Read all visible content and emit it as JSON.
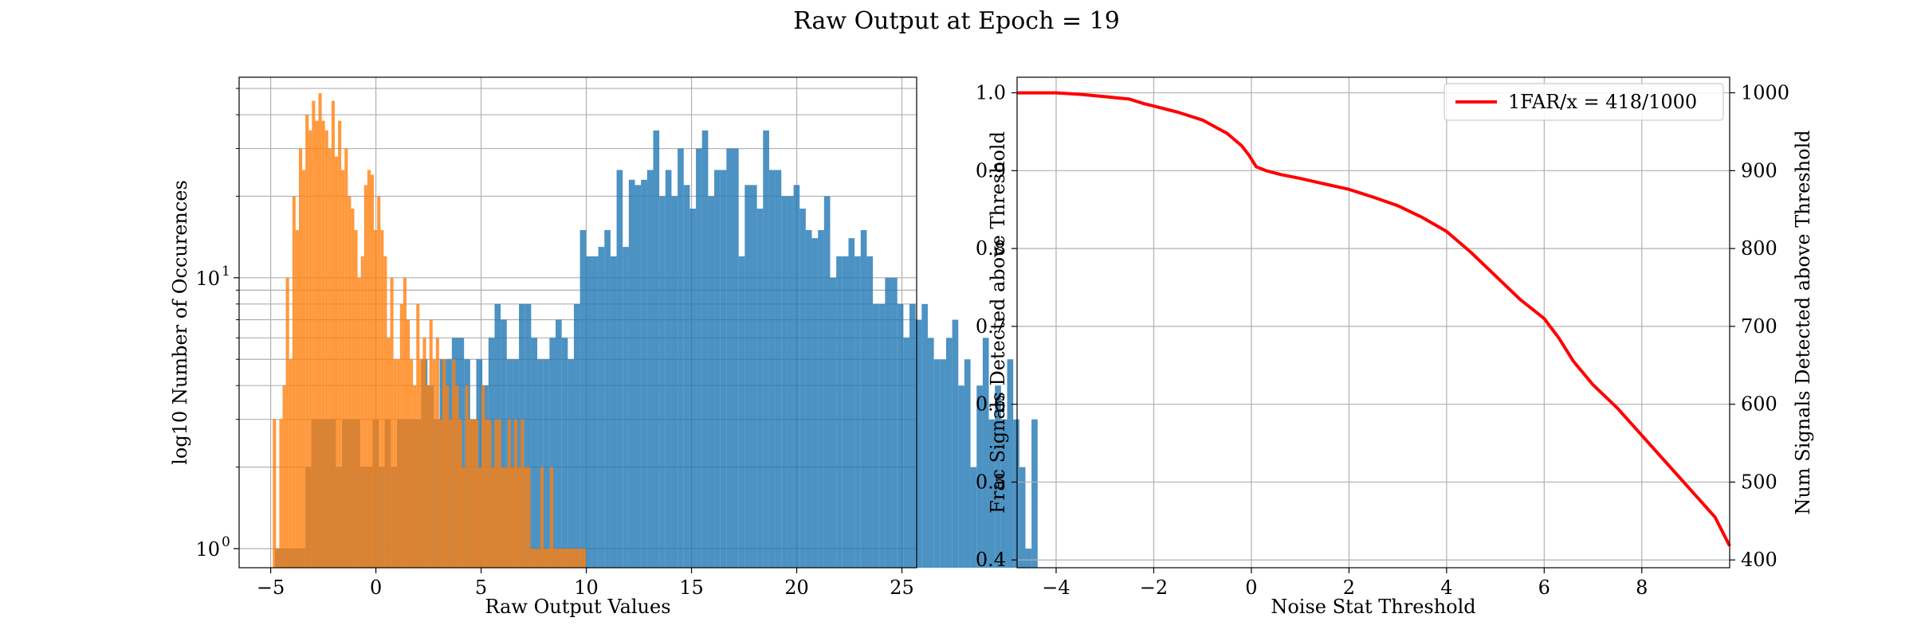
{
  "figure": {
    "title": "Raw Output at Epoch = 19"
  },
  "chart_data": [
    {
      "type": "histogram",
      "yscale": "log",
      "xlabel": "Raw Output Values",
      "ylabel": "log10 Number of Occurences",
      "xlim": [
        -6.5,
        25.7
      ],
      "ylim": [
        0.85,
        55
      ],
      "xticks": [
        -5,
        0,
        5,
        10,
        15,
        20,
        25
      ],
      "yticks": [
        {
          "value": 1,
          "label": "10",
          "exp": "0"
        },
        {
          "value": 10,
          "label": "10",
          "exp": "1"
        }
      ],
      "grid": true,
      "series": [
        {
          "color": "#1f77b4",
          "alpha": 0.8,
          "bin_start": -4.8,
          "bin_width": 0.29,
          "counts": [
            1,
            1,
            1,
            1,
            1,
            2,
            3,
            3,
            3,
            3,
            2,
            3,
            3,
            3,
            2,
            2,
            3,
            2,
            3,
            2,
            3,
            3,
            3,
            3,
            5,
            4,
            3,
            5,
            5,
            6,
            6,
            5,
            3,
            5,
            4,
            6,
            8,
            7,
            5,
            5,
            8,
            8,
            6,
            5,
            5,
            6,
            7,
            6,
            5,
            8,
            15,
            12,
            12,
            13,
            15,
            12,
            25,
            13,
            23,
            22,
            23,
            25,
            35,
            20,
            25,
            20,
            30,
            22,
            18,
            30,
            35,
            20,
            25,
            25,
            30,
            30,
            12,
            22,
            22,
            18,
            35,
            25,
            25,
            20,
            20,
            22,
            18,
            15,
            14,
            15,
            20,
            10,
            12,
            12,
            14,
            12,
            15,
            12,
            8,
            8,
            10,
            10,
            8,
            6,
            8,
            7,
            8,
            6,
            5,
            5,
            6,
            7,
            4,
            5,
            2,
            4,
            6,
            3,
            4,
            3,
            5,
            3,
            2,
            1,
            3
          ]
        },
        {
          "color": "#ff7f0e",
          "alpha": 0.8,
          "bin_start": -4.9,
          "bin_width": 0.155,
          "counts": [
            3,
            1,
            3,
            4,
            10,
            5,
            20,
            15,
            30,
            25,
            40,
            35,
            45,
            38,
            48,
            38,
            35,
            30,
            45,
            28,
            38,
            25,
            30,
            20,
            18,
            15,
            10,
            12,
            22,
            25,
            24,
            15,
            20,
            15,
            12,
            6,
            10,
            5,
            5,
            8,
            10,
            7,
            5,
            4,
            8,
            5,
            6,
            4,
            7,
            5,
            6,
            3,
            5,
            4,
            3,
            5,
            4,
            3,
            2,
            4,
            3,
            3,
            3,
            2,
            4,
            3,
            3,
            2,
            3,
            3,
            2,
            2,
            3,
            2,
            3,
            2,
            3,
            2,
            2,
            1,
            1,
            1,
            2,
            1,
            1,
            2,
            1,
            1,
            1,
            1,
            1,
            1,
            1,
            1,
            1,
            1
          ]
        }
      ]
    },
    {
      "type": "line",
      "xlabel": "Noise Stat Threshold",
      "ylabel": "Frac Signals Detected above Threshold",
      "ylabel_right": "Num Signals Detected above Threshold",
      "xlim": [
        -4.8,
        9.8
      ],
      "ylim": [
        0.39,
        1.02
      ],
      "ylim_right": [
        390,
        1020
      ],
      "xticks": [
        -4,
        -2,
        0,
        2,
        4,
        6,
        8
      ],
      "xtick_labels": [
        "−4",
        "−2",
        "0",
        "2",
        "4",
        "6",
        "8"
      ],
      "yticks": [
        0.4,
        0.5,
        0.6,
        0.7,
        0.8,
        0.9,
        1.0
      ],
      "ytick_labels": [
        "0.4",
        "0.5",
        "0.6",
        "0.7",
        "0.8",
        "0.9",
        "1.0"
      ],
      "yticks_right": [
        400,
        500,
        600,
        700,
        800,
        900,
        1000
      ],
      "legend": {
        "position": "top-right",
        "label": "1FAR/x = 418/1000"
      },
      "grid": true,
      "series": [
        {
          "name": "1FAR/x = 418/1000",
          "color": "#ff0000",
          "x": [
            -4.8,
            -4.0,
            -3.5,
            -3.0,
            -2.5,
            -2.2,
            -2.0,
            -1.5,
            -1.0,
            -0.5,
            -0.2,
            -0.05,
            0.1,
            0.3,
            0.6,
            1.0,
            1.5,
            2.0,
            2.5,
            3.0,
            3.5,
            4.0,
            4.5,
            5.0,
            5.5,
            6.0,
            6.3,
            6.6,
            7.0,
            7.5,
            8.0,
            8.5,
            9.0,
            9.5,
            9.8
          ],
          "y": [
            1.0,
            1.0,
            0.998,
            0.995,
            0.992,
            0.986,
            0.983,
            0.975,
            0.965,
            0.948,
            0.932,
            0.92,
            0.905,
            0.9,
            0.895,
            0.89,
            0.883,
            0.876,
            0.866,
            0.855,
            0.84,
            0.822,
            0.795,
            0.765,
            0.735,
            0.71,
            0.685,
            0.655,
            0.625,
            0.595,
            0.56,
            0.525,
            0.49,
            0.455,
            0.418
          ]
        }
      ]
    }
  ]
}
